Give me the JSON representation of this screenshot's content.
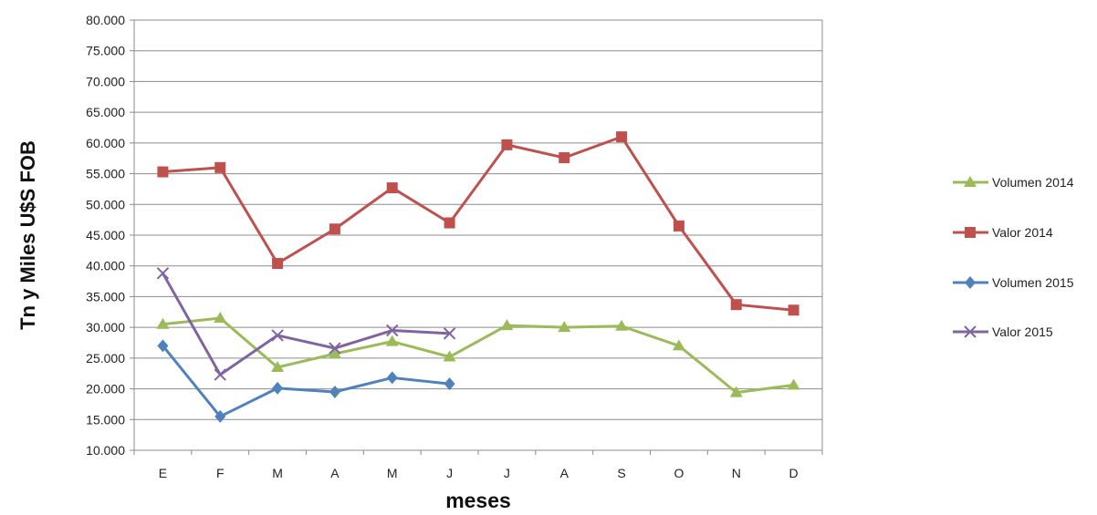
{
  "chart_data": {
    "type": "line",
    "title": "",
    "xlabel": "meses",
    "ylabel": "Tn y Miles U$S FOB",
    "categories": [
      "E",
      "F",
      "M",
      "A",
      "M",
      "J",
      "J",
      "A",
      "S",
      "O",
      "N",
      "D"
    ],
    "ylim": [
      10000,
      80000
    ],
    "ytick_labels": [
      "10.000",
      "15.000",
      "20.000",
      "25.000",
      "30.000",
      "35.000",
      "40.000",
      "45.000",
      "50.000",
      "55.000",
      "60.000",
      "65.000",
      "70.000",
      "75.000",
      "80.000"
    ],
    "grid": true,
    "legend_position": "right",
    "series": [
      {
        "name": "Volumen 2014",
        "color": "#9BBB59",
        "marker": "triangle",
        "values": [
          30500,
          31500,
          23500,
          25700,
          27700,
          25200,
          30300,
          30000,
          30200,
          27000,
          19400,
          20600
        ]
      },
      {
        "name": "Valor 2014",
        "color": "#C0504D",
        "marker": "square",
        "values": [
          55300,
          56000,
          40400,
          46000,
          52700,
          47000,
          59700,
          57600,
          61000,
          46500,
          33700,
          32800
        ]
      },
      {
        "name": "Volumen 2015",
        "color": "#4F81BD",
        "marker": "diamond",
        "values": [
          27000,
          15500,
          20100,
          19500,
          21800,
          20800,
          null,
          null,
          null,
          null,
          null,
          null
        ]
      },
      {
        "name": "Valor 2015",
        "color": "#8064A2",
        "marker": "x",
        "values": [
          38800,
          22300,
          28700,
          26600,
          29500,
          29000,
          null,
          null,
          null,
          null,
          null,
          null
        ]
      }
    ]
  }
}
